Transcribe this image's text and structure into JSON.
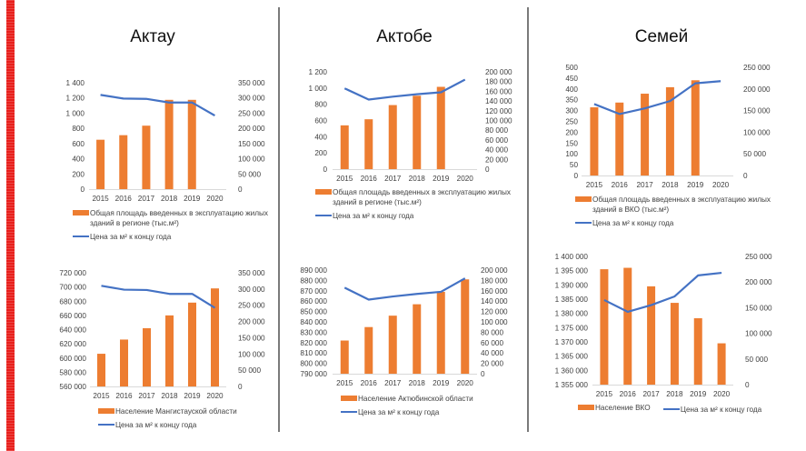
{
  "page": {
    "cities": [
      "Актау",
      "Актобе",
      "Семей"
    ],
    "colors": {
      "bar": "#ED7D31",
      "line": "#4472C4",
      "accent_stripe": "#E8201C"
    }
  },
  "chart_data": [
    {
      "id": "aktau-area",
      "type": "bar",
      "title": "",
      "city": "Актау",
      "categories": [
        "2015",
        "2016",
        "2017",
        "2018",
        "2019",
        "2020"
      ],
      "series": [
        {
          "name": "Общая площадь введенных в эксплуатацию жилых зданий в регионе (тыс.м²)",
          "type": "bar",
          "axis": "left",
          "values": [
            650,
            710,
            835,
            1175,
            1175,
            null
          ]
        },
        {
          "name": "Цена за м² к концу года",
          "type": "line",
          "axis": "right",
          "values": [
            310000,
            298000,
            297000,
            285000,
            285000,
            242000
          ]
        }
      ],
      "y_left": {
        "ylim": [
          0,
          1400
        ],
        "ticks": [
          0,
          200,
          400,
          600,
          800,
          1000,
          1200,
          1400
        ],
        "tick_labels": [
          "0",
          "200",
          "400",
          "600",
          "800",
          "1 000",
          "1 200",
          "1 400"
        ]
      },
      "y_right": {
        "ylim": [
          0,
          350000
        ],
        "ticks": [
          0,
          50000,
          100000,
          150000,
          200000,
          250000,
          300000,
          350000
        ],
        "tick_labels": [
          "0",
          "50 000",
          "100 000",
          "150 000",
          "200 000",
          "250 000",
          "300 000",
          "350 000"
        ]
      },
      "legend_placement": "bottom",
      "xlabel": "",
      "ylabel": "",
      "grid": false
    },
    {
      "id": "aktau-population",
      "type": "bar",
      "title": "",
      "city": "Актау",
      "categories": [
        "2015",
        "2016",
        "2017",
        "2018",
        "2019",
        "2020"
      ],
      "series": [
        {
          "name": "Население Мангистауской области",
          "type": "bar",
          "axis": "left",
          "values": [
            606000,
            626000,
            642000,
            660000,
            678000,
            698000
          ]
        },
        {
          "name": "Цена за м² к концу года",
          "type": "line",
          "axis": "right",
          "values": [
            310000,
            298000,
            297000,
            285000,
            285000,
            242000
          ]
        }
      ],
      "y_left": {
        "ylim": [
          560000,
          720000
        ],
        "ticks": [
          560000,
          580000,
          600000,
          620000,
          640000,
          660000,
          680000,
          700000,
          720000
        ],
        "tick_labels": [
          "560 000",
          "580 000",
          "600 000",
          "620 000",
          "640 000",
          "660 000",
          "680 000",
          "700 000",
          "720 000"
        ]
      },
      "y_right": {
        "ylim": [
          0,
          350000
        ],
        "ticks": [
          0,
          50000,
          100000,
          150000,
          200000,
          250000,
          300000,
          350000
        ],
        "tick_labels": [
          "0",
          "50 000",
          "100 000",
          "150 000",
          "200 000",
          "250 000",
          "300 000",
          "350 000"
        ]
      },
      "legend_placement": "bottom",
      "xlabel": "",
      "ylabel": "",
      "grid": false
    },
    {
      "id": "aktobe-area",
      "type": "bar",
      "title": "",
      "city": "Актобе",
      "categories": [
        "2015",
        "2016",
        "2017",
        "2018",
        "2019",
        "2020"
      ],
      "series": [
        {
          "name": "Общая площадь введенных в эксплуатацию жилых зданий в регионе (тыс.м²)",
          "type": "bar",
          "axis": "left",
          "values": [
            540,
            615,
            790,
            905,
            1015,
            null
          ]
        },
        {
          "name": "Цена за м² к концу года",
          "type": "line",
          "axis": "right",
          "values": [
            166000,
            143000,
            149000,
            154000,
            158000,
            184000
          ]
        }
      ],
      "y_left": {
        "ylim": [
          0,
          1200
        ],
        "ticks": [
          0,
          200,
          400,
          600,
          800,
          1000,
          1200
        ],
        "tick_labels": [
          "0",
          "200",
          "400",
          "600",
          "800",
          "1 000",
          "1 200"
        ]
      },
      "y_right": {
        "ylim": [
          0,
          200000
        ],
        "ticks": [
          0,
          20000,
          40000,
          60000,
          80000,
          100000,
          120000,
          140000,
          160000,
          180000,
          200000
        ],
        "tick_labels": [
          "0",
          "20 000",
          "40 000",
          "60 000",
          "80 000",
          "100 000",
          "120 000",
          "140 000",
          "160 000",
          "180 000",
          "200 000"
        ]
      },
      "legend_placement": "bottom",
      "xlabel": "",
      "ylabel": "",
      "grid": false
    },
    {
      "id": "aktobe-population",
      "type": "bar",
      "title": "",
      "city": "Актобе",
      "categories": [
        "2015",
        "2016",
        "2017",
        "2018",
        "2019",
        "2020"
      ],
      "series": [
        {
          "name": "Население Актюбинской области",
          "type": "bar",
          "axis": "left",
          "values": [
            822000,
            835000,
            846000,
            857000,
            869000,
            881000
          ]
        },
        {
          "name": "Цена за м² к концу года",
          "type": "line",
          "axis": "right",
          "values": [
            166000,
            143000,
            149000,
            154000,
            158000,
            184000
          ]
        }
      ],
      "y_left": {
        "ylim": [
          790000,
          890000
        ],
        "ticks": [
          790000,
          800000,
          810000,
          820000,
          830000,
          840000,
          850000,
          860000,
          870000,
          880000,
          890000
        ],
        "tick_labels": [
          "790 000",
          "800 000",
          "810 000",
          "820 000",
          "830 000",
          "840 000",
          "850 000",
          "860 000",
          "870 000",
          "880 000",
          "890 000"
        ]
      },
      "y_right": {
        "ylim": [
          0,
          200000
        ],
        "ticks": [
          0,
          20000,
          40000,
          60000,
          80000,
          100000,
          120000,
          140000,
          160000,
          180000,
          200000
        ],
        "tick_labels": [
          "0",
          "20 000",
          "40 000",
          "60 000",
          "80 000",
          "100 000",
          "120 000",
          "140 000",
          "160 000",
          "180 000",
          "200 000"
        ]
      },
      "legend_placement": "bottom",
      "xlabel": "",
      "ylabel": "",
      "grid": false
    },
    {
      "id": "semey-area",
      "type": "bar",
      "title": "",
      "city": "Семей",
      "categories": [
        "2015",
        "2016",
        "2017",
        "2018",
        "2019",
        "2020"
      ],
      "series": [
        {
          "name": "Общая площадь введенных в эксплуатацию жилых зданий в ВКО (тыс.м²)",
          "type": "bar",
          "axis": "left",
          "values": [
            315,
            337,
            378,
            408,
            440,
            null
          ]
        },
        {
          "name": "Цена за м² к концу года",
          "type": "line",
          "axis": "right",
          "values": [
            165000,
            142000,
            155000,
            172000,
            213000,
            218000
          ]
        }
      ],
      "y_left": {
        "ylim": [
          0,
          500
        ],
        "ticks": [
          0,
          50,
          100,
          150,
          200,
          250,
          300,
          350,
          400,
          450,
          500
        ],
        "tick_labels": [
          "0",
          "50",
          "100",
          "150",
          "200",
          "250",
          "300",
          "350",
          "400",
          "450",
          "500"
        ]
      },
      "y_right": {
        "ylim": [
          0,
          250000
        ],
        "ticks": [
          0,
          50000,
          100000,
          150000,
          200000,
          250000
        ],
        "tick_labels": [
          "0",
          "50 000",
          "100 000",
          "150 000",
          "200 000",
          "250 000"
        ]
      },
      "legend_placement": "bottom",
      "xlabel": "",
      "ylabel": "",
      "grid": false
    },
    {
      "id": "semey-population",
      "type": "bar",
      "title": "",
      "city": "Семей",
      "categories": [
        "2015",
        "2016",
        "2017",
        "2018",
        "2019",
        "2020"
      ],
      "series": [
        {
          "name": "Население ВКО",
          "type": "bar",
          "axis": "left",
          "values": [
            1395500,
            1396000,
            1389500,
            1383700,
            1378300,
            1369500
          ]
        },
        {
          "name": "Цена за м² к концу года",
          "type": "line",
          "axis": "right",
          "values": [
            165000,
            142000,
            155000,
            172000,
            213000,
            218000
          ]
        }
      ],
      "y_left": {
        "ylim": [
          1355000,
          1400000
        ],
        "ticks": [
          1355000,
          1360000,
          1365000,
          1370000,
          1375000,
          1380000,
          1385000,
          1390000,
          1395000,
          1400000
        ],
        "tick_labels": [
          "1 355 000",
          "1 360 000",
          "1 365 000",
          "1 370 000",
          "1 375 000",
          "1 380 000",
          "1 385 000",
          "1 390 000",
          "1 395 000",
          "1 400 000"
        ]
      },
      "y_right": {
        "ylim": [
          0,
          250000
        ],
        "ticks": [
          0,
          50000,
          100000,
          150000,
          200000,
          250000
        ],
        "tick_labels": [
          "0",
          "50 000",
          "100 000",
          "150 000",
          "200 000",
          "250 000"
        ]
      },
      "legend_placement": "bottom",
      "xlabel": "",
      "ylabel": "",
      "grid": false
    }
  ]
}
